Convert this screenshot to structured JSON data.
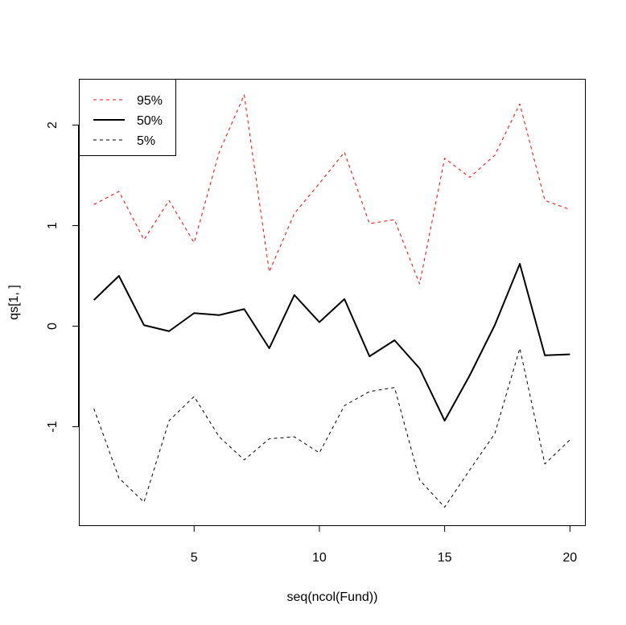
{
  "chart_data": {
    "type": "line",
    "xlabel": "seq(ncol(Fund))",
    "ylabel": "qs[1, ]",
    "xlim": [
      0.4,
      20.6
    ],
    "ylim": [
      -1.98,
      2.46
    ],
    "x_ticks": [
      5,
      10,
      15,
      20
    ],
    "y_ticks": [
      -1,
      0,
      1,
      2
    ],
    "grid": false,
    "legend_position": "top-left",
    "x": [
      1,
      2,
      3,
      4,
      5,
      6,
      7,
      8,
      9,
      10,
      11,
      12,
      13,
      14,
      15,
      16,
      17,
      18,
      19,
      20
    ],
    "series": [
      {
        "name": "95%",
        "color": "#ff0000",
        "style": "dashed",
        "values": [
          1.21,
          1.34,
          0.86,
          1.25,
          0.83,
          1.73,
          2.3,
          0.54,
          1.12,
          1.42,
          1.73,
          1.02,
          1.06,
          0.42,
          1.67,
          1.48,
          1.7,
          2.21,
          1.25,
          1.16
        ]
      },
      {
        "name": "50%",
        "color": "#000000",
        "style": "solid",
        "values": [
          0.26,
          0.5,
          0.01,
          -0.05,
          0.13,
          0.11,
          0.17,
          -0.22,
          0.31,
          0.04,
          0.27,
          -0.3,
          -0.14,
          -0.42,
          -0.94,
          -0.49,
          0.01,
          0.62,
          -0.29,
          -0.28
        ]
      },
      {
        "name": "5%",
        "color": "#000000",
        "style": "dashed",
        "values": [
          -0.82,
          -1.51,
          -1.75,
          -0.94,
          -0.7,
          -1.1,
          -1.33,
          -1.12,
          -1.1,
          -1.26,
          -0.79,
          -0.65,
          -0.61,
          -1.53,
          -1.8,
          -1.43,
          -1.07,
          -0.22,
          -1.37,
          -1.13
        ]
      }
    ]
  }
}
